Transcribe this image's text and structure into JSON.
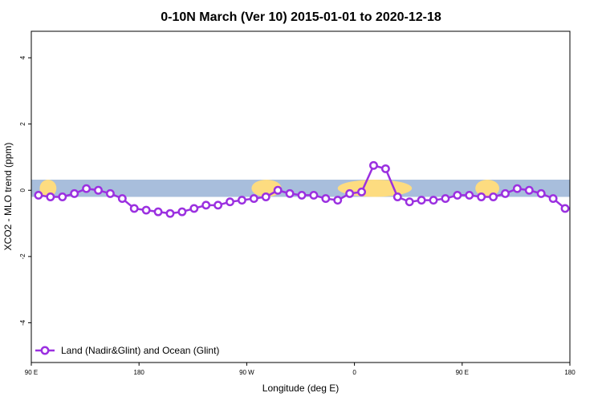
{
  "chart_data": {
    "type": "line",
    "title": "0-10N March (Ver 10)   2015-01-01 to 2020-12-18",
    "xlabel": "Longitude (deg E)",
    "ylabel": "XCO2 - MLO trend (ppm)",
    "xlim": [
      0,
      45
    ],
    "ylim": [
      -5.2,
      4.8
    ],
    "x_ticks": [
      {
        "x": 0,
        "label": "90 E"
      },
      {
        "x": 9,
        "label": "180"
      },
      {
        "x": 18,
        "label": "90 W"
      },
      {
        "x": 27,
        "label": "0"
      },
      {
        "x": 36,
        "label": "90 E"
      },
      {
        "x": 45,
        "label": "180"
      }
    ],
    "y_ticks": [
      {
        "y": 4,
        "label": "4"
      },
      {
        "y": 2,
        "label": "2"
      },
      {
        "y": 0,
        "label": "0"
      },
      {
        "y": -2,
        "label": "-2"
      },
      {
        "y": -4,
        "label": "-4"
      }
    ],
    "band": {
      "ymin": -0.2,
      "ymax": 0.32,
      "ocean_color": "#a8bedc",
      "land_color": "#fddc80"
    },
    "land_spans": [
      {
        "xmin": 0.7,
        "xmax": 2.1
      },
      {
        "xmin": 18.4,
        "xmax": 20.9
      },
      {
        "xmin": 25.6,
        "xmax": 31.8
      },
      {
        "xmin": 37.1,
        "xmax": 39.1
      }
    ],
    "series": [
      {
        "name": "Land (Nadir&Glint) and Ocean (Glint)",
        "color": "#9b30e0",
        "x": [
          0.6,
          1.6,
          2.6,
          3.6,
          4.6,
          5.6,
          6.6,
          7.6,
          8.6,
          9.6,
          10.6,
          11.6,
          12.6,
          13.6,
          14.6,
          15.6,
          16.6,
          17.6,
          18.6,
          19.6,
          20.6,
          21.6,
          22.6,
          23.6,
          24.6,
          25.6,
          26.6,
          27.6,
          28.6,
          29.6,
          30.6,
          31.6,
          32.6,
          33.6,
          34.6,
          35.6,
          36.6,
          37.6,
          38.6,
          39.6,
          40.6,
          41.6,
          42.6,
          43.6,
          44.6
        ],
        "values": [
          -0.15,
          -0.2,
          -0.2,
          -0.1,
          0.05,
          0.0,
          -0.1,
          -0.25,
          -0.55,
          -0.6,
          -0.65,
          -0.7,
          -0.65,
          -0.55,
          -0.45,
          -0.45,
          -0.35,
          -0.3,
          -0.25,
          -0.2,
          0.0,
          -0.1,
          -0.15,
          -0.15,
          -0.25,
          -0.3,
          -0.1,
          -0.05,
          0.75,
          0.65,
          -0.2,
          -0.35,
          -0.3,
          -0.3,
          -0.25,
          -0.15,
          -0.15,
          -0.2,
          -0.2,
          -0.1,
          0.05,
          0.0,
          -0.1,
          -0.25,
          -0.55
        ]
      }
    ],
    "legend": {
      "position": "bottom-left"
    }
  }
}
